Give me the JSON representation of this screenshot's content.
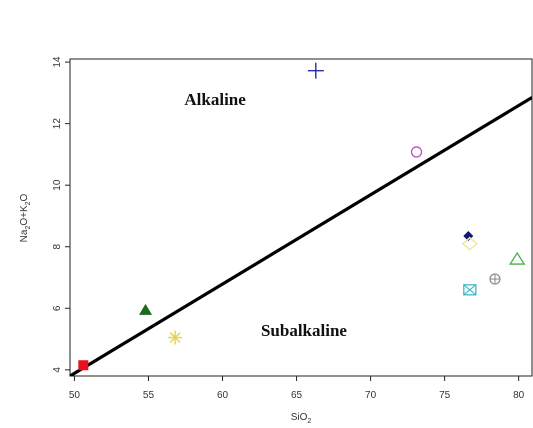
{
  "chart_data": {
    "type": "scatter",
    "xlabel_main": "SiO",
    "xlabel_sub": "2",
    "ylabel_parts": [
      "Na",
      "2",
      "O+K",
      "2",
      "O"
    ],
    "xlim": [
      49.7,
      80.9
    ],
    "ylim": [
      3.8,
      14.1
    ],
    "xticks": [
      50,
      55,
      60,
      65,
      70,
      75,
      80
    ],
    "yticks": [
      4,
      6,
      8,
      10,
      12,
      14
    ],
    "grid": false,
    "legend": "none",
    "divider_line": {
      "x": [
        49.7,
        80.9
      ],
      "y": [
        3.8,
        12.85
      ],
      "color": "#000000"
    },
    "region_labels": [
      {
        "text": "Alkaline",
        "x": 59.5,
        "y": 12.6
      },
      {
        "text": "Subalkaline",
        "x": 65.5,
        "y": 5.1
      }
    ],
    "points": [
      {
        "x": 50.6,
        "y": 4.15,
        "marker": "filled-square",
        "color": "#e8101c"
      },
      {
        "x": 54.8,
        "y": 5.95,
        "marker": "filled-triangle",
        "color": "#1a6b1a"
      },
      {
        "x": 56.8,
        "y": 5.05,
        "marker": "asterisk",
        "color": "#e5d24a"
      },
      {
        "x": 66.3,
        "y": 13.72,
        "marker": "plus",
        "color": "#2a2aa8"
      },
      {
        "x": 73.1,
        "y": 11.08,
        "marker": "open-circle",
        "color": "#c050c8"
      },
      {
        "x": 76.6,
        "y": 8.35,
        "marker": "filled-diamond",
        "color": "#141475"
      },
      {
        "x": 76.7,
        "y": 8.1,
        "marker": "open-diamond",
        "color": "#f0e7a0"
      },
      {
        "x": 76.7,
        "y": 6.6,
        "marker": "boxed-x",
        "color": "#3fb8c8"
      },
      {
        "x": 78.4,
        "y": 6.95,
        "marker": "circle-plus",
        "color": "#8a8a8a"
      },
      {
        "x": 79.9,
        "y": 7.6,
        "marker": "open-triangle",
        "color": "#47b047"
      }
    ]
  }
}
